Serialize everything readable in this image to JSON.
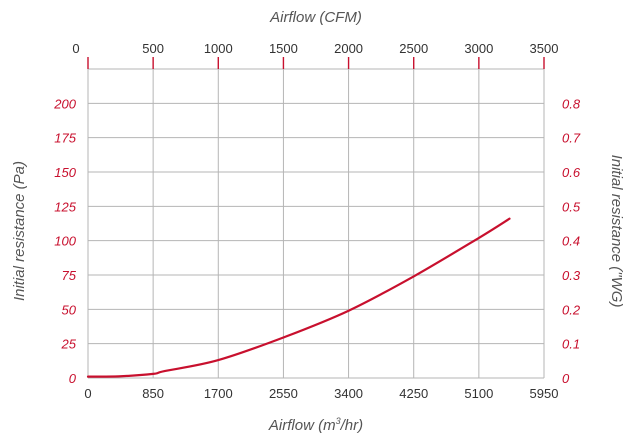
{
  "chart_data": {
    "type": "line",
    "top_axis": {
      "label": "Airflow (CFM)",
      "ticks": [
        0,
        500,
        1000,
        1500,
        2000,
        2500,
        3000,
        3500
      ],
      "tick_labels": [
        "0",
        "500",
        "1000",
        "1500",
        "2000",
        "2500",
        "3000",
        "3500"
      ]
    },
    "bottom_axis": {
      "label_main": "Airflow (m",
      "label_sup": "3",
      "label_end": "/hr)",
      "ticks": [
        0,
        850,
        1700,
        2550,
        3400,
        4250,
        5100,
        5950
      ],
      "tick_labels": [
        "0",
        "850",
        "1700",
        "2550",
        "3400",
        "4250",
        "5100",
        "5950"
      ],
      "range": [
        0,
        5950
      ]
    },
    "left_axis": {
      "label": "Initial resistance (Pa)",
      "ticks": [
        0,
        25,
        50,
        75,
        100,
        125,
        150,
        175,
        200
      ],
      "tick_labels": [
        "0",
        "25",
        "50",
        "75",
        "100",
        "125",
        "150",
        "175",
        "200"
      ],
      "range": [
        0,
        225
      ]
    },
    "right_axis": {
      "label": "Initial resistance (\"WG)",
      "ticks": [
        0,
        0.1,
        0.2,
        0.3,
        0.4,
        0.5,
        0.6,
        0.7,
        0.8
      ],
      "tick_labels": [
        "0",
        "0.1",
        "0.2",
        "0.3",
        "0.4",
        "0.5",
        "0.6",
        "0.7",
        "0.8"
      ]
    },
    "grid": true,
    "colors": {
      "line": "#c8102e",
      "grid": "#b5b5b5",
      "ticks": "#c8102e"
    },
    "series": [
      {
        "x": [
          0,
          400,
          850,
          1000,
          1700,
          2550,
          3400,
          4250,
          5100,
          5500
        ],
        "y": [
          1,
          1.2,
          3,
          5,
          13,
          29.5,
          49,
          74,
          102,
          116
        ]
      }
    ]
  }
}
